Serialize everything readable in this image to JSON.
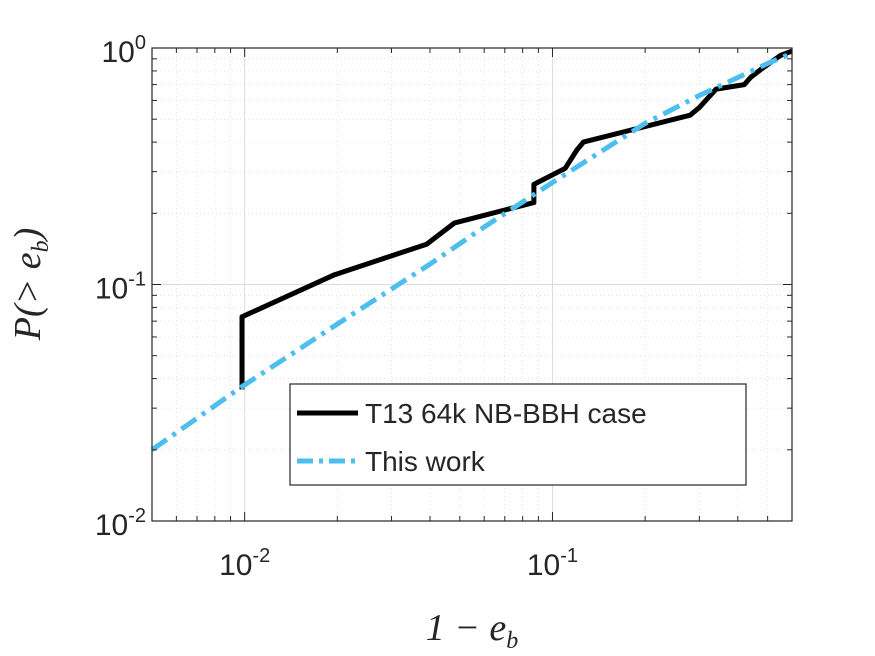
{
  "chart_data": {
    "type": "line",
    "xlabel": "1 − e_b",
    "ylabel": "P(> e_b)",
    "xscale": "log",
    "yscale": "log",
    "xlim": [
      0.005,
      0.6
    ],
    "ylim": [
      0.01,
      1
    ],
    "grid": true,
    "minor_grid": true,
    "legend_position": "bottom-right",
    "x_ticks": [
      {
        "value": 0.01,
        "base": "10",
        "exp": "-2"
      },
      {
        "value": 0.1,
        "base": "10",
        "exp": "-1"
      }
    ],
    "y_ticks": [
      {
        "value": 0.01,
        "base": "10",
        "exp": "-2"
      },
      {
        "value": 0.1,
        "base": "10",
        "exp": "-1"
      },
      {
        "value": 1,
        "base": "10",
        "exp": "0"
      }
    ],
    "series": [
      {
        "name": "T13 64k NB-BBH case",
        "color": "#000000",
        "style": "solid",
        "x": [
          0.0098,
          0.0098,
          0.0196,
          0.039,
          0.048,
          0.059,
          0.087,
          0.087,
          0.11,
          0.12,
          0.126,
          0.28,
          0.3,
          0.34,
          0.42,
          0.44,
          0.48,
          0.55,
          0.6
        ],
        "y": [
          0.036,
          0.073,
          0.11,
          0.148,
          0.182,
          0.195,
          0.222,
          0.265,
          0.31,
          0.37,
          0.4,
          0.52,
          0.56,
          0.67,
          0.7,
          0.75,
          0.82,
          0.93,
          0.97
        ]
      },
      {
        "name": "This work",
        "color": "#4DBEEE",
        "style": "dashdot",
        "x": [
          0.005,
          0.0098,
          0.02,
          0.04,
          0.06,
          0.1,
          0.2,
          0.3,
          0.4,
          0.5,
          0.6
        ],
        "y": [
          0.02,
          0.037,
          0.068,
          0.122,
          0.175,
          0.27,
          0.48,
          0.63,
          0.75,
          0.86,
          0.95
        ]
      }
    ]
  }
}
